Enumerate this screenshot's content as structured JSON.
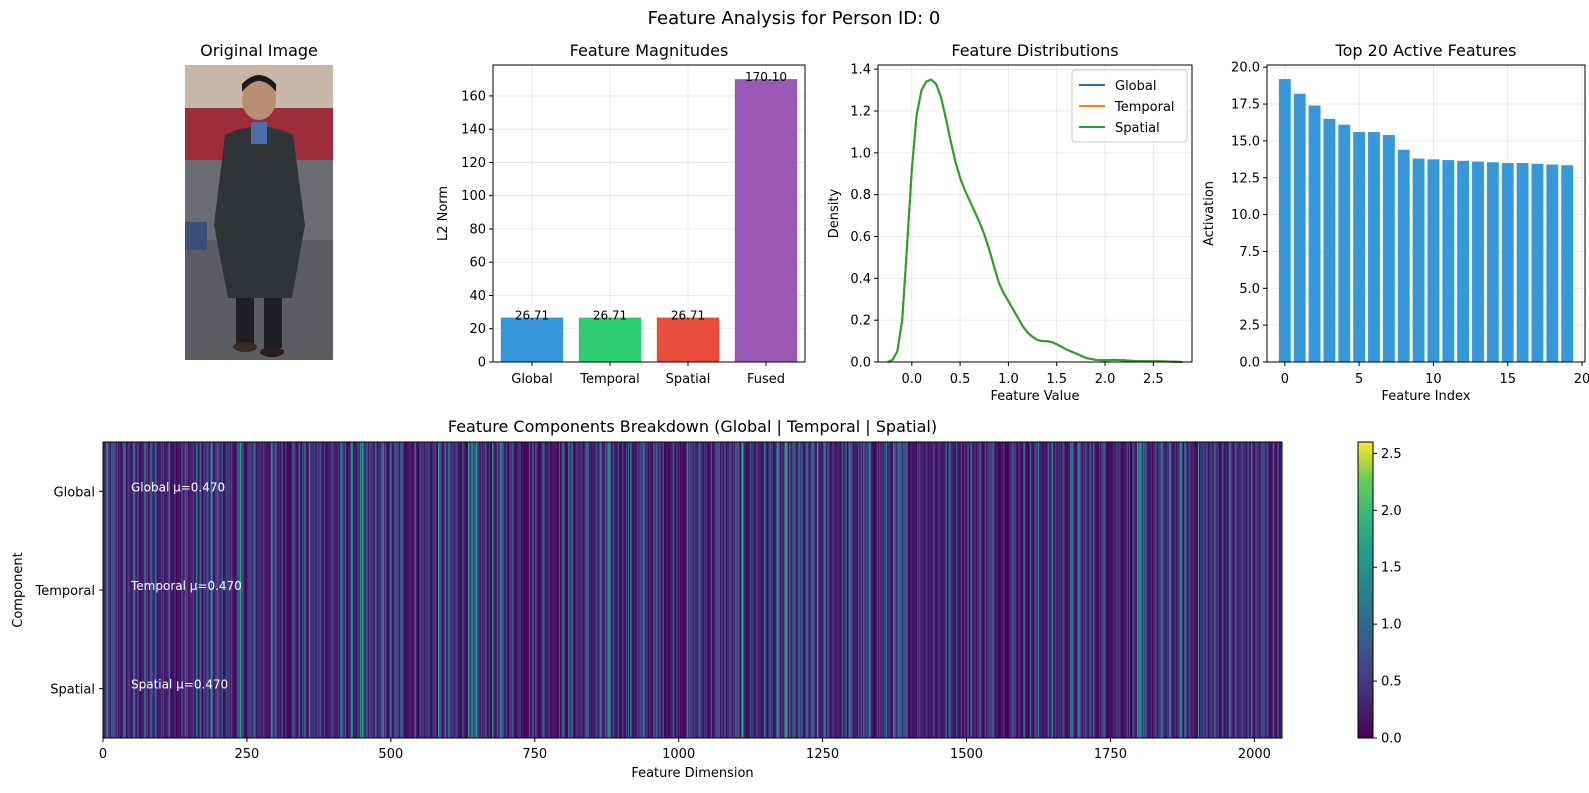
{
  "figure": {
    "suptitle": "Feature Analysis for Person ID: 0"
  },
  "image_panel": {
    "title": "Original Image"
  },
  "chart_data": [
    {
      "id": "magnitudes",
      "type": "bar",
      "title": "Feature Magnitudes",
      "xlabel": "",
      "ylabel": "L2 Norm",
      "categories": [
        "Global",
        "Temporal",
        "Spatial",
        "Fused"
      ],
      "values": [
        26.71,
        26.71,
        26.71,
        170.1
      ],
      "value_labels": [
        "26.71",
        "26.71",
        "26.71",
        "170.10"
      ],
      "colors": [
        "#3498db",
        "#2ecc71",
        "#e74c3c",
        "#9b59b6"
      ],
      "ylim": [
        0,
        178.6
      ],
      "yticks": [
        0,
        20,
        40,
        60,
        80,
        100,
        120,
        140,
        160
      ],
      "grid": true
    },
    {
      "id": "distributions",
      "type": "line",
      "title": "Feature Distributions",
      "xlabel": "Feature Value",
      "ylabel": "Density",
      "xlim": [
        -0.35,
        2.9
      ],
      "ylim": [
        0,
        1.42
      ],
      "xticks": [
        0.0,
        0.5,
        1.0,
        1.5,
        2.0,
        2.5
      ],
      "yticks": [
        0.0,
        0.2,
        0.4,
        0.6,
        0.8,
        1.0,
        1.2,
        1.4
      ],
      "grid": true,
      "legend_position": "top-right",
      "x": [
        -0.25,
        -0.2,
        -0.15,
        -0.1,
        -0.05,
        0.0,
        0.05,
        0.1,
        0.15,
        0.2,
        0.25,
        0.3,
        0.35,
        0.4,
        0.45,
        0.5,
        0.55,
        0.6,
        0.65,
        0.7,
        0.75,
        0.8,
        0.85,
        0.9,
        0.95,
        1.0,
        1.05,
        1.1,
        1.15,
        1.2,
        1.25,
        1.3,
        1.35,
        1.4,
        1.45,
        1.5,
        1.6,
        1.7,
        1.8,
        1.9,
        2.0,
        2.1,
        2.2,
        2.3,
        2.4,
        2.5,
        2.6,
        2.7,
        2.8
      ],
      "series": [
        {
          "name": "Global",
          "color": "#1f77b4",
          "values": [
            0.0,
            0.01,
            0.05,
            0.2,
            0.55,
            0.92,
            1.18,
            1.3,
            1.34,
            1.35,
            1.33,
            1.27,
            1.17,
            1.06,
            0.96,
            0.88,
            0.82,
            0.77,
            0.72,
            0.67,
            0.61,
            0.54,
            0.46,
            0.38,
            0.33,
            0.29,
            0.25,
            0.21,
            0.17,
            0.14,
            0.12,
            0.105,
            0.1,
            0.1,
            0.095,
            0.085,
            0.06,
            0.04,
            0.02,
            0.01,
            0.008,
            0.01,
            0.008,
            0.005,
            0.004,
            0.004,
            0.003,
            0.002,
            0.0
          ]
        },
        {
          "name": "Temporal",
          "color": "#ff7f0e",
          "values": [
            0.0,
            0.01,
            0.05,
            0.2,
            0.55,
            0.92,
            1.18,
            1.3,
            1.34,
            1.35,
            1.33,
            1.27,
            1.17,
            1.06,
            0.96,
            0.88,
            0.82,
            0.77,
            0.72,
            0.67,
            0.61,
            0.54,
            0.46,
            0.38,
            0.33,
            0.29,
            0.25,
            0.21,
            0.17,
            0.14,
            0.12,
            0.105,
            0.1,
            0.1,
            0.095,
            0.085,
            0.06,
            0.04,
            0.02,
            0.01,
            0.008,
            0.01,
            0.008,
            0.005,
            0.004,
            0.004,
            0.003,
            0.002,
            0.0
          ]
        },
        {
          "name": "Spatial",
          "color": "#2ca02c",
          "values": [
            0.0,
            0.01,
            0.05,
            0.2,
            0.55,
            0.92,
            1.18,
            1.3,
            1.34,
            1.35,
            1.33,
            1.27,
            1.17,
            1.06,
            0.96,
            0.88,
            0.82,
            0.77,
            0.72,
            0.67,
            0.61,
            0.54,
            0.46,
            0.38,
            0.33,
            0.29,
            0.25,
            0.21,
            0.17,
            0.14,
            0.12,
            0.105,
            0.1,
            0.1,
            0.095,
            0.085,
            0.06,
            0.04,
            0.02,
            0.01,
            0.008,
            0.01,
            0.008,
            0.005,
            0.004,
            0.004,
            0.003,
            0.002,
            0.0
          ]
        }
      ]
    },
    {
      "id": "top20",
      "type": "bar",
      "title": "Top 20 Active Features",
      "xlabel": "Feature Index",
      "ylabel": "Activation",
      "categories": [
        0,
        1,
        2,
        3,
        4,
        5,
        6,
        7,
        8,
        9,
        10,
        11,
        12,
        13,
        14,
        15,
        16,
        17,
        18,
        19
      ],
      "values": [
        19.2,
        18.2,
        17.4,
        16.5,
        16.1,
        15.6,
        15.6,
        15.4,
        14.4,
        13.8,
        13.75,
        13.7,
        13.65,
        13.6,
        13.55,
        13.5,
        13.5,
        13.45,
        13.4,
        13.35
      ],
      "color": "#3498db",
      "xlim": [
        -1.2,
        20.2
      ],
      "ylim": [
        0,
        20.15
      ],
      "xticks": [
        0,
        5,
        10,
        15,
        20
      ],
      "yticks": [
        0.0,
        2.5,
        5.0,
        7.5,
        10.0,
        12.5,
        15.0,
        17.5,
        20.0
      ],
      "ytick_labels": [
        "0.0",
        "2.5",
        "5.0",
        "7.5",
        "10.0",
        "12.5",
        "15.0",
        "17.5",
        "20.0"
      ],
      "grid": true
    },
    {
      "id": "breakdown",
      "type": "heatmap",
      "title": "Feature Components Breakdown (Global | Temporal | Spatial)",
      "xlabel": "Feature Dimension",
      "ylabel": "Component",
      "rows": [
        "Global",
        "Temporal",
        "Spatial"
      ],
      "n_dims": 2048,
      "xlim": [
        0,
        2048
      ],
      "xticks": [
        0,
        250,
        500,
        750,
        1000,
        1250,
        1500,
        1750,
        2000
      ],
      "annotations": [
        "Global μ=0.470",
        "Temporal μ=0.470",
        "Spatial μ=0.470"
      ],
      "colormap": "viridis",
      "colorbar_range": [
        0.0,
        2.6
      ],
      "colorbar_ticks": [
        "0.0",
        "0.5",
        "1.0",
        "1.5",
        "2.0",
        "2.5"
      ],
      "colorbar_tick_values": [
        0.0,
        0.5,
        1.0,
        1.5,
        2.0,
        2.5
      ]
    }
  ]
}
